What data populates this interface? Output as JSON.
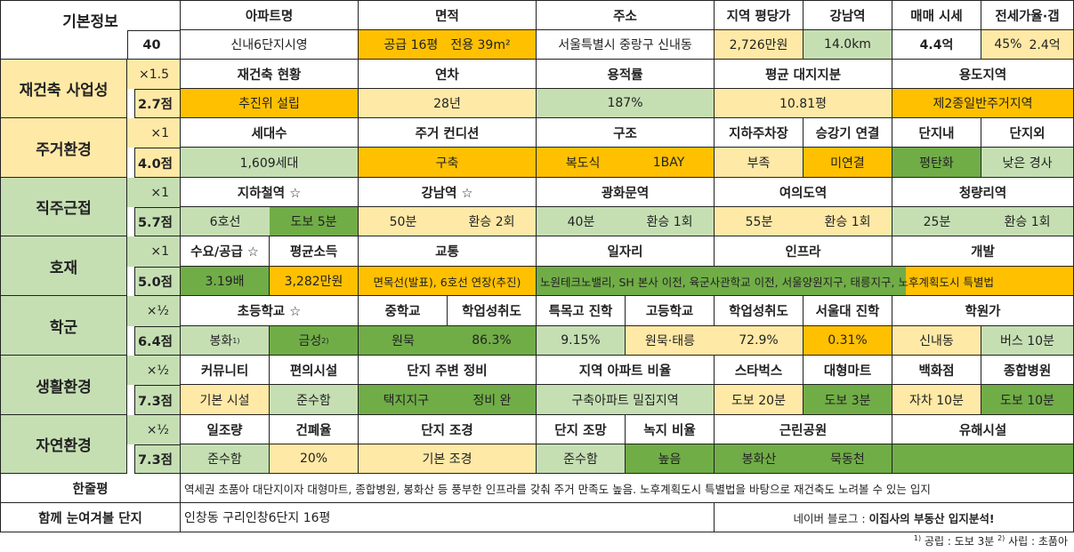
{
  "colors": {
    "white": "#ffffff",
    "pale_yellow": "#ffe9a6",
    "orange": "#ffc000",
    "light_green": "#c5dfb3",
    "green": "#70ad47"
  },
  "basic": {
    "label": "기본정보",
    "number": "40",
    "headers": [
      "아파트명",
      "면적",
      "주소",
      "지역 평당가",
      "강남역",
      "매매 시세",
      "전세가율·갭"
    ],
    "apt_name": "신내6단지시영",
    "area_supply": "공급 16평",
    "area_exclusive": "전용 39m²",
    "address": "서울특별시 중랑구 신내동",
    "price_per_pyeong": "2,726만원",
    "gangnam_distance": "14.0km",
    "sale_price": "4.4억",
    "jeonse_ratio": "45%",
    "gap": "2.4억"
  },
  "sections": [
    {
      "name": "재건축 사업성",
      "mult": "×1.5",
      "score": "2.7점"
    },
    {
      "name": "주거환경",
      "mult": "×1",
      "score": "4.0점"
    },
    {
      "name": "직주근접",
      "mult": "×1",
      "score": "5.7점"
    },
    {
      "name": "호재",
      "mult": "×1",
      "score": "5.0점"
    },
    {
      "name": "학군",
      "mult": "×½",
      "score": "6.4점"
    },
    {
      "name": "생활환경",
      "mult": "×½",
      "score": "7.3점"
    },
    {
      "name": "자연환경",
      "mult": "×½",
      "score": "7.3점"
    }
  ],
  "rebuild": {
    "headers": [
      "재건축 현황",
      "연차",
      "용적률",
      "평균 대지지분",
      "용도지역"
    ],
    "values": [
      "추진위 설립",
      "28년",
      "187%",
      "10.81평",
      "제2종일반주거지역"
    ]
  },
  "living": {
    "headers": [
      "세대수",
      "주거 컨디션",
      "구조",
      "지하주차장",
      "승강기 연결",
      "단지내",
      "단지외"
    ],
    "households": "1,609세대",
    "condition": "구축",
    "structure_a": "복도식",
    "structure_b": "1BAY",
    "parking": "부족",
    "elevator": "미연결",
    "inside": "평탄화",
    "outside": "낮은 경사"
  },
  "commute": {
    "headers": [
      "지하철역 ☆",
      "강남역 ☆",
      "광화문역",
      "여의도역",
      "청량리역"
    ],
    "subway_line": "6호선",
    "subway_walk": "도보 5분",
    "gangnam_time": "50분",
    "gangnam_transfer": "환승 2회",
    "gwanghwamun_time": "40분",
    "gwanghwamun_transfer": "환승 1회",
    "yeouido_time": "55분",
    "yeouido_transfer": "환승 1회",
    "cheongnyangni_time": "25분",
    "cheongnyangni_transfer": "환승 1회"
  },
  "growth": {
    "headers": [
      "수요/공급 ☆",
      "평균소득",
      "교통",
      "일자리",
      "인프라",
      "개발"
    ],
    "supply_demand": "3.19배",
    "income": "3,282만원",
    "transport": "면목선(발표), 6호선 연장(추진)",
    "jobs_infra_dev": "노원테크노밸리, SH 본사 이전, 육군사관학교 이전, 서울양원지구, 태릉지구, 노후계획도시 특별법"
  },
  "school": {
    "headers": [
      "초등학교 ☆",
      "중학교",
      "학업성취도",
      "특목고 진학",
      "고등학교",
      "학업성취도",
      "서울대 진학",
      "학원가"
    ],
    "elem_1": "봉화",
    "elem_1_mark": "1)",
    "elem_2": "금성",
    "elem_2_mark": "2)",
    "middle": "원묵",
    "middle_rate": "86.3%",
    "special_rate": "9.15%",
    "high": "원묵·태릉",
    "high_rate": "72.9%",
    "snu_rate": "0.31%",
    "academy_area": "신내동",
    "academy_access": "버스 10분"
  },
  "life": {
    "headers": [
      "커뮤니티",
      "편의시설",
      "단지 주변 정비",
      "지역 아파트 비율",
      "스타벅스",
      "대형마트",
      "백화점",
      "종합병원"
    ],
    "community": "기본 시설",
    "convenience": "준수함",
    "surround_a": "택지지구",
    "surround_b": "정비 완",
    "apt_ratio": "구축아파트 밀집지역",
    "starbucks": "도보 20분",
    "mart": "도보 3분",
    "department": "자차 10분",
    "hospital": "도보 10분"
  },
  "nature": {
    "headers": [
      "일조량",
      "건폐율",
      "단지 조경",
      "단지 조망",
      "녹지 비율",
      "근린공원",
      "유해시설"
    ],
    "sunlight": "준수함",
    "coverage": "20%",
    "landscape": "기본 조경",
    "view": "준수함",
    "green_ratio": "높음",
    "park_a": "봉화산",
    "park_b": "묵동천",
    "hazard": ""
  },
  "summary": {
    "label": "한줄평",
    "text": "역세권 초품아 대단지이자 대형마트, 종합병원, 봉화산 등 풍부한 인프라를 갖춰 주거 만족도 높음. 노후계획도시 특별법을 바탕으로 재건축도 노려볼 수 있는 입지"
  },
  "related": {
    "label": "함께 눈여겨볼 단지",
    "text": "인창동 구리인창6단지 16평",
    "blog_prefix": "네이버 블로그 :",
    "blog_name": "이집사의 부동산 입지분석!"
  },
  "footnote": {
    "mark1": "1)",
    "text1": "공립 : 도보 3분",
    "mark2": "2)",
    "text2": "사립 : 초품아"
  }
}
